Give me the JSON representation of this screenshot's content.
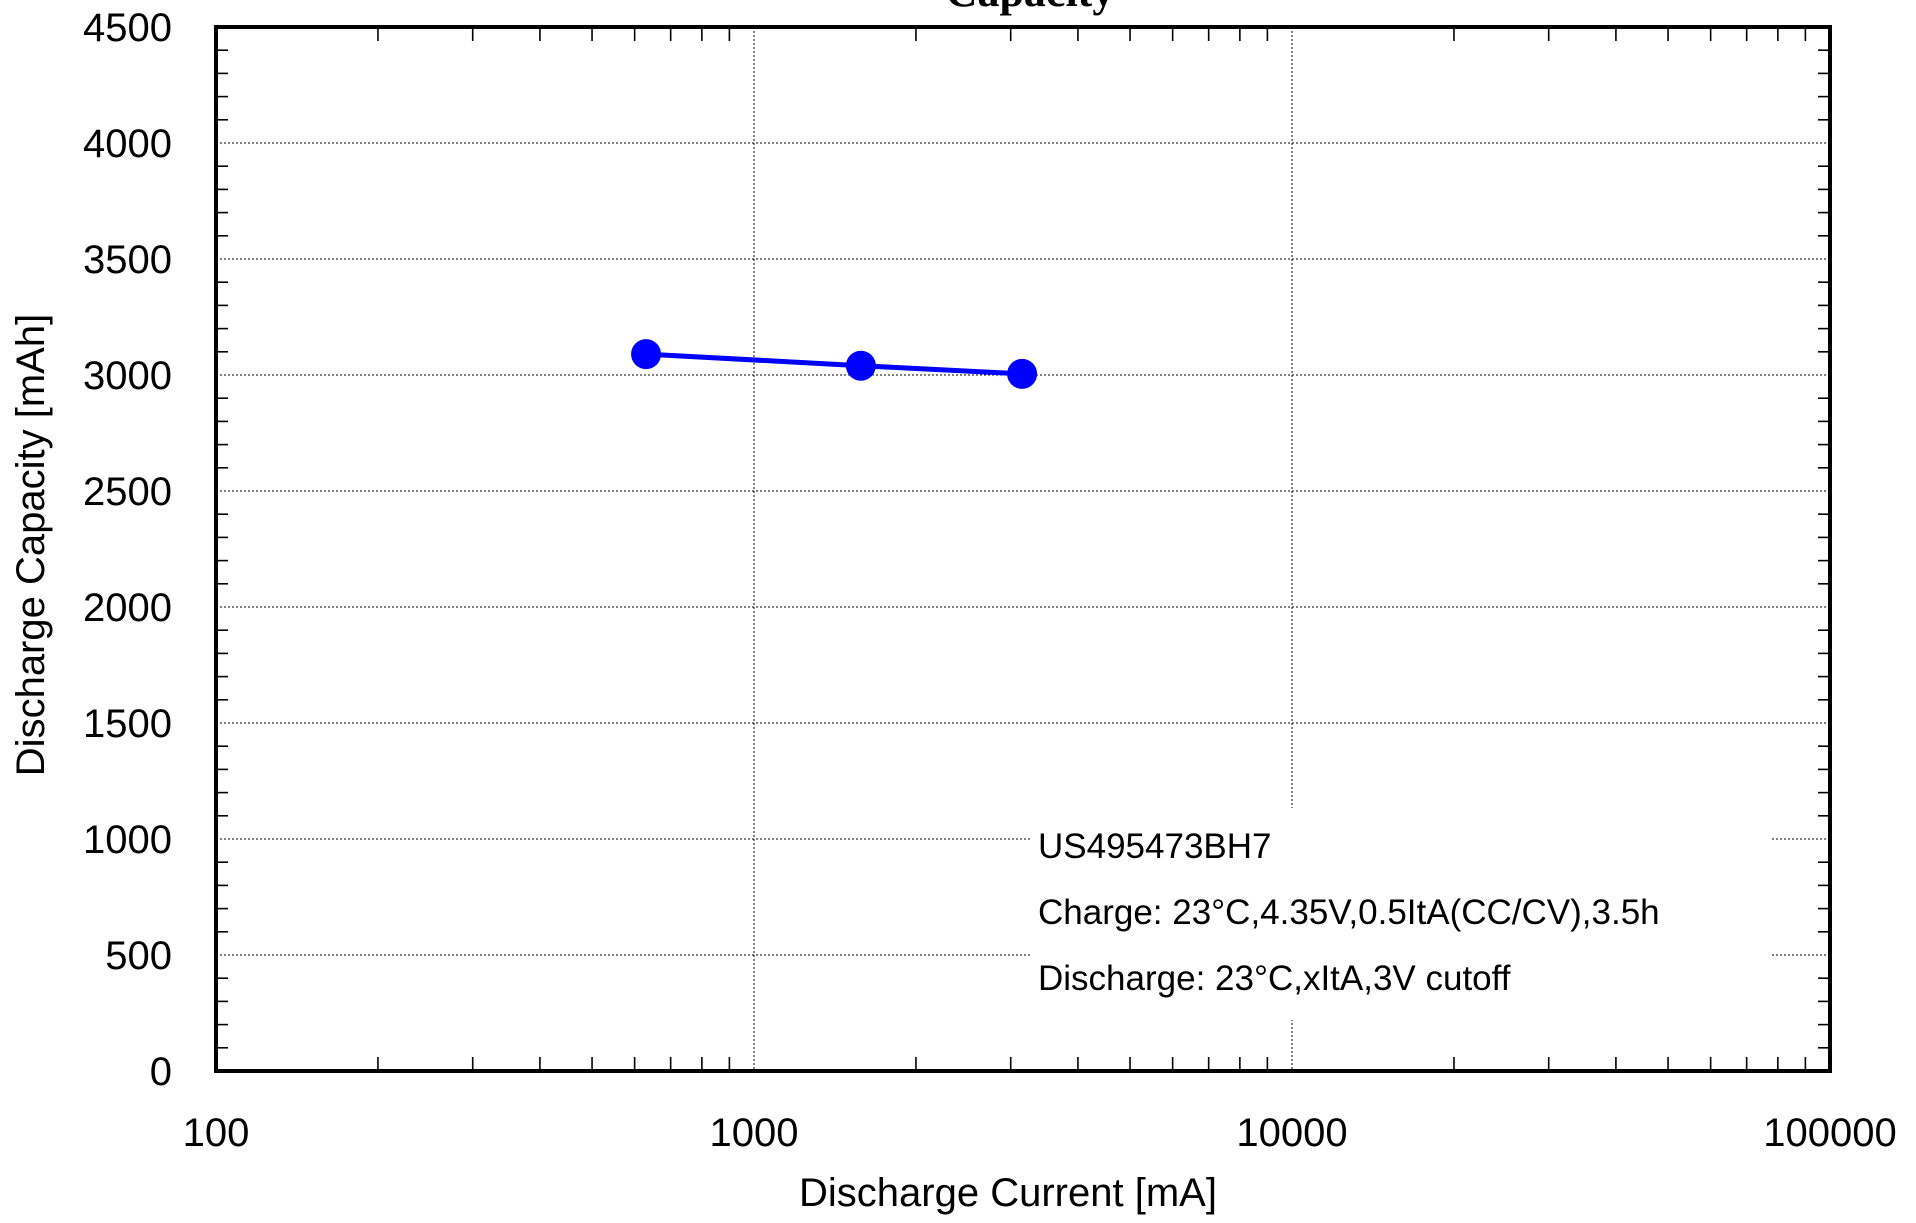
{
  "chart_data": {
    "type": "line",
    "title": "Capacity",
    "xlabel": "Discharge Current [mA]",
    "ylabel": "Discharge Capacity [mAh]",
    "xscale": "log",
    "xlim": [
      100,
      100000
    ],
    "ylim": [
      0,
      4500
    ],
    "x_ticks": [
      "100",
      "1000",
      "10000",
      "100000"
    ],
    "y_ticks": [
      "0",
      "500",
      "1000",
      "1500",
      "2000",
      "2500",
      "3000",
      "3500",
      "4000",
      "4500"
    ],
    "grid": true,
    "series": [
      {
        "color": "#0000ff",
        "x": [
          630,
          1580,
          3150
        ],
        "y": [
          3090,
          3040,
          3005
        ]
      }
    ],
    "annotation": {
      "lines": [
        "US495473BH7",
        "Charge: 23°C,4.35V,0.5ItA(CC/CV),3.5h",
        "Discharge: 23°C,xItA,3V cutoff"
      ],
      "placement": "bottom-right"
    }
  }
}
